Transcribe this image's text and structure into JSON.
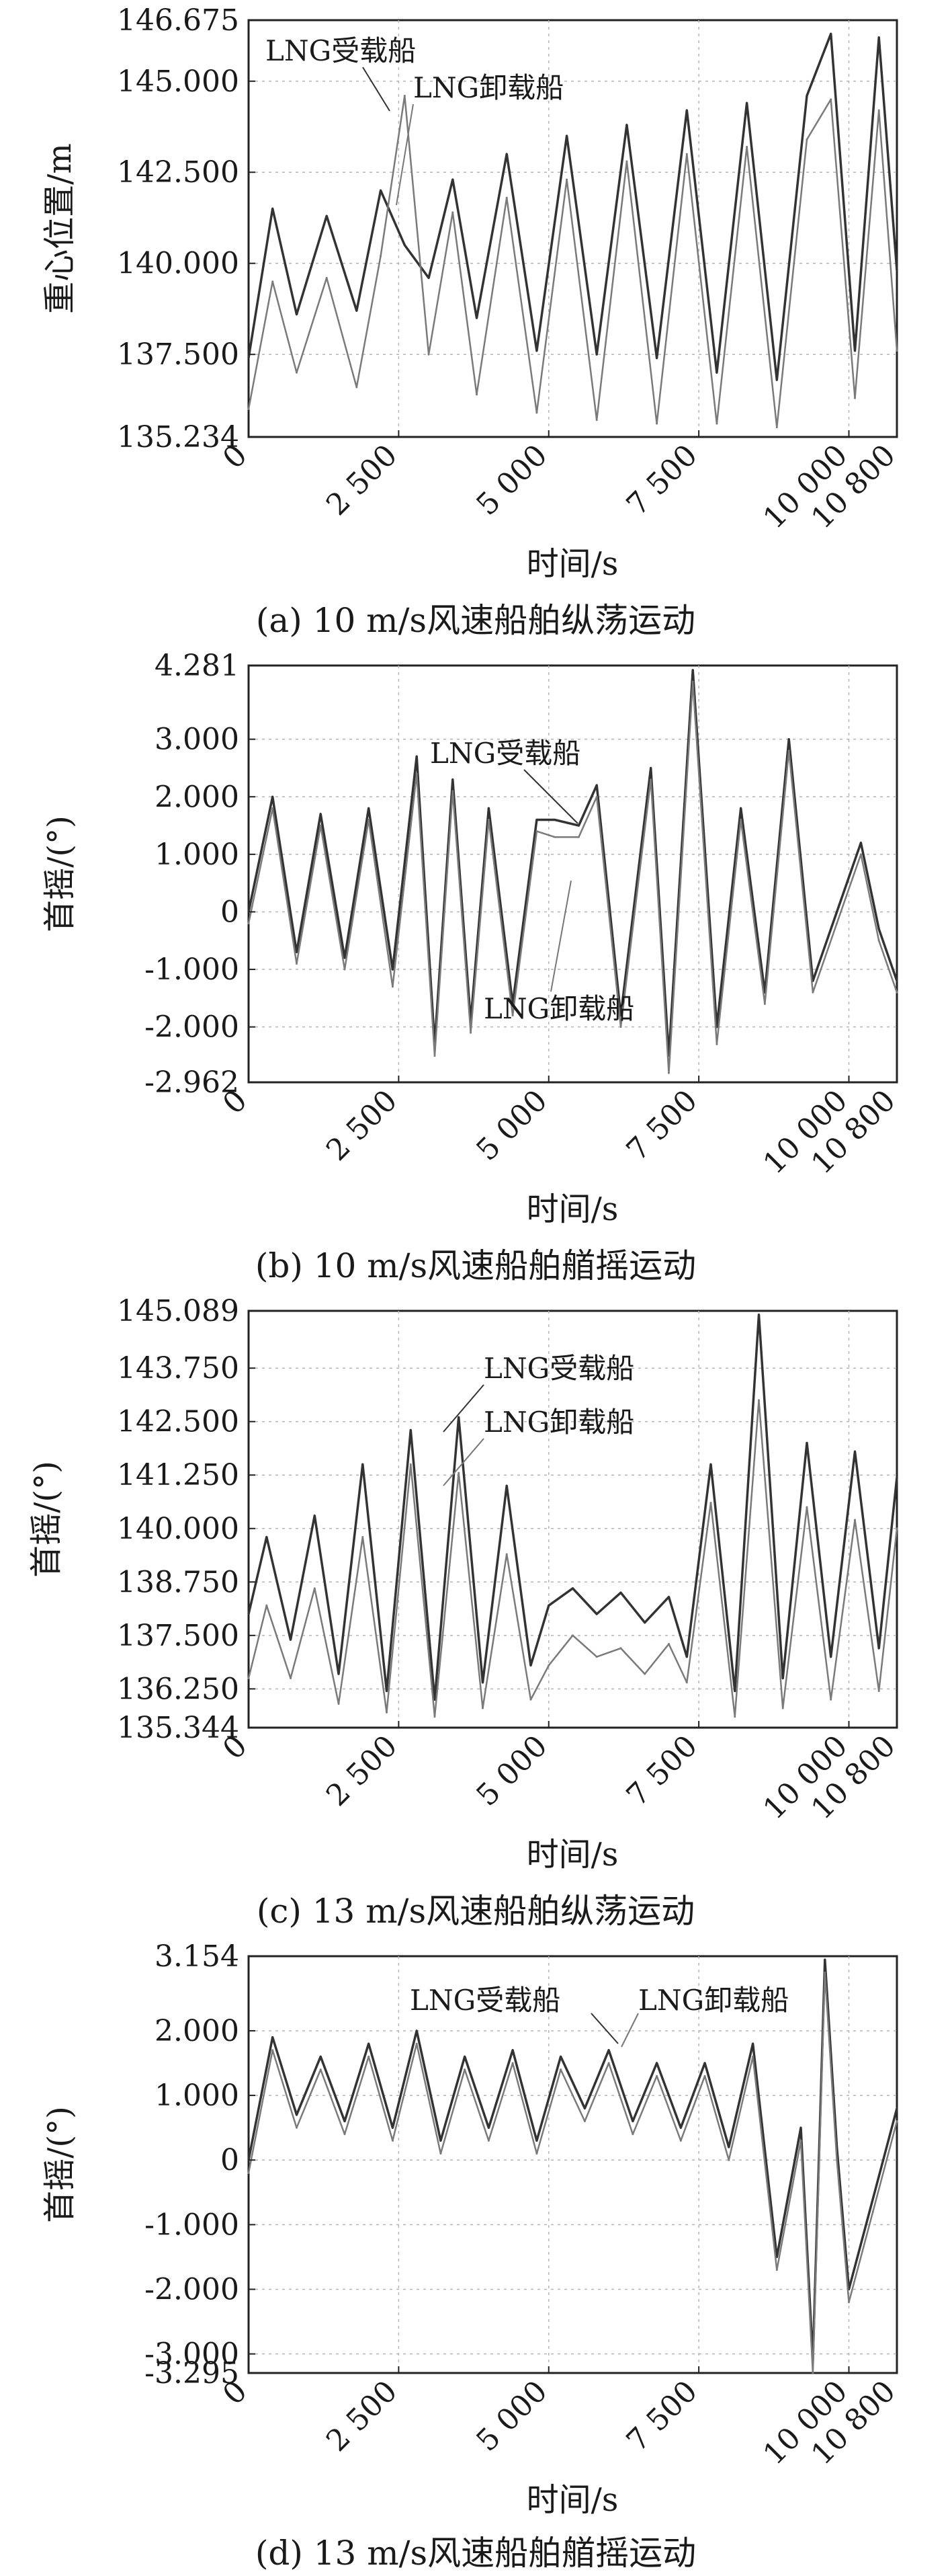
{
  "chart_data": [
    {
      "type": "line",
      "title": "",
      "caption": "(a) 10 m/s风速船舶纵荡运动",
      "xlabel": "时间/s",
      "ylabel": "重心位置/m",
      "xlim": [
        0,
        10800
      ],
      "ylim": [
        135.234,
        146.675
      ],
      "xticks": [
        0,
        2500,
        5000,
        7500,
        10000,
        10800
      ],
      "xtick_labels": [
        "0",
        "2 500",
        "5 000",
        "7 500",
        "10 000",
        "10 800"
      ],
      "yticks": [
        135.234,
        137.5,
        140.0,
        142.5,
        145.0,
        146.675
      ],
      "ytick_labels": [
        "135.234",
        "137.500",
        "140.000",
        "142.500",
        "145.000",
        "146.675"
      ],
      "grid": true,
      "series": [
        {
          "name": "LNG受载船",
          "color": "#333333",
          "x": [
            0,
            400,
            800,
            1300,
            1800,
            2200,
            2600,
            3000,
            3400,
            3800,
            4300,
            4800,
            5300,
            5800,
            6300,
            6800,
            7300,
            7800,
            8300,
            8800,
            9300,
            9700,
            10100,
            10500,
            10800
          ],
          "values": [
            137.4,
            141.5,
            138.6,
            141.3,
            138.7,
            142.0,
            140.5,
            139.6,
            142.3,
            138.5,
            143.0,
            137.6,
            143.5,
            137.5,
            143.8,
            137.4,
            144.2,
            137.0,
            144.4,
            136.8,
            144.6,
            146.3,
            137.6,
            146.2,
            139.8
          ]
        },
        {
          "name": "LNG卸载船",
          "color": "#7a7a7a",
          "x": [
            0,
            400,
            800,
            1300,
            1800,
            2200,
            2600,
            3000,
            3400,
            3800,
            4300,
            4800,
            5300,
            5800,
            6300,
            6800,
            7300,
            7800,
            8300,
            8800,
            9300,
            9700,
            10100,
            10500,
            10800
          ],
          "values": [
            136.0,
            139.5,
            137.0,
            139.6,
            136.6,
            140.2,
            144.6,
            137.5,
            141.4,
            136.4,
            141.8,
            135.9,
            142.3,
            135.7,
            142.8,
            135.6,
            143.0,
            135.6,
            143.2,
            135.5,
            143.4,
            144.5,
            136.3,
            144.2,
            137.6
          ]
        }
      ],
      "annotations": [
        "LNG受载船",
        "LNG卸载船"
      ]
    },
    {
      "type": "line",
      "title": "",
      "caption": "(b) 10 m/s风速船舶艏摇运动",
      "xlabel": "时间/s",
      "ylabel": "首摇/(°)",
      "xlim": [
        0,
        10800
      ],
      "ylim": [
        -2.962,
        4.281
      ],
      "xticks": [
        0,
        2500,
        5000,
        7500,
        10000,
        10800
      ],
      "xtick_labels": [
        "0",
        "2 500",
        "5 000",
        "7 500",
        "10 000",
        "10 800"
      ],
      "yticks": [
        -2.962,
        -2.0,
        -1.0,
        0,
        1.0,
        2.0,
        3.0,
        4.281
      ],
      "ytick_labels": [
        "-2.962",
        "-2.000",
        "-1.000",
        "0",
        "1.000",
        "2.000",
        "3.000",
        "4.281"
      ],
      "grid": true,
      "series": [
        {
          "name": "LNG受载船",
          "color": "#333333",
          "x": [
            0,
            400,
            800,
            1200,
            1600,
            2000,
            2400,
            2800,
            3100,
            3400,
            3700,
            4000,
            4400,
            4800,
            5100,
            5500,
            5800,
            6200,
            6700,
            7000,
            7400,
            7800,
            8200,
            8600,
            9000,
            9400,
            9800,
            10200,
            10500,
            10800
          ],
          "values": [
            0.0,
            2.0,
            -0.7,
            1.7,
            -0.8,
            1.8,
            -1.0,
            2.7,
            -2.3,
            2.3,
            -1.9,
            1.8,
            -1.6,
            1.6,
            1.6,
            1.5,
            2.2,
            -1.8,
            2.5,
            -2.5,
            4.2,
            -2.0,
            1.8,
            -1.4,
            3.0,
            -1.2,
            0.0,
            1.2,
            -0.3,
            -1.2
          ]
        },
        {
          "name": "LNG卸载船",
          "color": "#7a7a7a",
          "x": [
            0,
            400,
            800,
            1200,
            1600,
            2000,
            2400,
            2800,
            3100,
            3400,
            3700,
            4000,
            4400,
            4800,
            5100,
            5500,
            5800,
            6200,
            6700,
            7000,
            7400,
            7800,
            8200,
            8600,
            9000,
            9400,
            9800,
            10200,
            10500,
            10800
          ],
          "values": [
            -0.2,
            1.8,
            -0.9,
            1.5,
            -1.0,
            1.6,
            -1.3,
            2.4,
            -2.5,
            2.1,
            -2.1,
            1.6,
            -1.8,
            1.4,
            1.3,
            1.3,
            2.0,
            -2.0,
            2.3,
            -2.8,
            4.0,
            -2.3,
            1.6,
            -1.6,
            2.8,
            -1.4,
            -0.2,
            1.0,
            -0.5,
            -1.4
          ]
        }
      ],
      "annotations": [
        "LNG受载船",
        "LNG卸载船"
      ]
    },
    {
      "type": "line",
      "title": "",
      "caption": "(c) 13 m/s风速船舶纵荡运动",
      "xlabel": "时间/s",
      "ylabel": "首摇/(°)",
      "xlim": [
        0,
        10800
      ],
      "ylim": [
        135.344,
        145.089
      ],
      "xticks": [
        0,
        2500,
        5000,
        7500,
        10000,
        10800
      ],
      "xtick_labels": [
        "0",
        "2 500",
        "5 000",
        "7 500",
        "10 000",
        "10 800"
      ],
      "yticks": [
        135.344,
        136.25,
        137.5,
        138.75,
        140.0,
        141.25,
        142.5,
        143.75,
        145.089
      ],
      "ytick_labels": [
        "135.344",
        "136.250",
        "137.500",
        "138.750",
        "140.000",
        "141.250",
        "142.500",
        "143.750",
        "145.089"
      ],
      "grid": true,
      "series": [
        {
          "name": "LNG受载船",
          "color": "#333333",
          "x": [
            0,
            300,
            700,
            1100,
            1500,
            1900,
            2300,
            2700,
            3100,
            3500,
            3900,
            4300,
            4700,
            5000,
            5400,
            5800,
            6200,
            6600,
            7000,
            7300,
            7700,
            8100,
            8500,
            8900,
            9300,
            9700,
            10100,
            10500,
            10800
          ],
          "values": [
            138.0,
            139.8,
            137.4,
            140.3,
            136.6,
            141.5,
            136.2,
            142.3,
            136.0,
            142.6,
            136.4,
            141.0,
            136.8,
            138.2,
            138.6,
            138.0,
            138.5,
            137.8,
            138.4,
            137.0,
            141.5,
            136.2,
            145.0,
            136.5,
            142.0,
            137.0,
            141.8,
            137.2,
            141.2
          ]
        },
        {
          "name": "LNG卸载船",
          "color": "#7a7a7a",
          "x": [
            0,
            300,
            700,
            1100,
            1500,
            1900,
            2300,
            2700,
            3100,
            3500,
            3900,
            4300,
            4700,
            5000,
            5400,
            5800,
            6200,
            6600,
            7000,
            7300,
            7700,
            8100,
            8500,
            8900,
            9300,
            9700,
            10100,
            10500,
            10800
          ],
          "values": [
            136.5,
            138.2,
            136.5,
            138.6,
            135.9,
            139.8,
            135.7,
            141.5,
            135.6,
            141.3,
            135.8,
            139.4,
            136.0,
            136.8,
            137.5,
            137.0,
            137.2,
            136.6,
            137.3,
            136.4,
            140.6,
            135.6,
            143.0,
            135.8,
            140.5,
            136.0,
            140.2,
            136.2,
            140.0
          ]
        }
      ],
      "annotations": [
        "LNG受载船",
        "LNG卸载船"
      ]
    },
    {
      "type": "line",
      "title": "",
      "caption": "(d) 13 m/s风速船舶艏摇运动",
      "xlabel": "时间/s",
      "ylabel": "首摇/(°)",
      "xlim": [
        0,
        10800
      ],
      "ylim": [
        -3.295,
        3.154
      ],
      "xticks": [
        0,
        2500,
        5000,
        7500,
        10000,
        10800
      ],
      "xtick_labels": [
        "0",
        "2 500",
        "5 000",
        "7 500",
        "10 000",
        "10 800"
      ],
      "yticks": [
        -3.295,
        -3.0,
        -2.0,
        -1.0,
        0,
        1.0,
        2.0,
        3.154
      ],
      "ytick_labels": [
        "-3.295",
        "-3.000",
        "-2.000",
        "-1.000",
        "0",
        "1.000",
        "2.000",
        "3.154"
      ],
      "grid": true,
      "series": [
        {
          "name": "LNG受载船",
          "color": "#333333",
          "x": [
            0,
            400,
            800,
            1200,
            1600,
            2000,
            2400,
            2800,
            3200,
            3600,
            4000,
            4400,
            4800,
            5200,
            5600,
            6000,
            6400,
            6800,
            7200,
            7600,
            8000,
            8400,
            8800,
            9200,
            9400,
            9600,
            9800,
            10000,
            10400,
            10800
          ],
          "values": [
            0.0,
            1.9,
            0.7,
            1.6,
            0.6,
            1.8,
            0.5,
            2.0,
            0.3,
            1.6,
            0.5,
            1.7,
            0.3,
            1.6,
            0.8,
            1.7,
            0.6,
            1.5,
            0.5,
            1.5,
            0.2,
            1.8,
            -1.5,
            0.5,
            -3.1,
            3.1,
            0.2,
            -2.0,
            -0.6,
            0.8
          ]
        },
        {
          "name": "LNG卸载船",
          "color": "#7a7a7a",
          "x": [
            0,
            400,
            800,
            1200,
            1600,
            2000,
            2400,
            2800,
            3200,
            3600,
            4000,
            4400,
            4800,
            5200,
            5600,
            6000,
            6400,
            6800,
            7200,
            7600,
            8000,
            8400,
            8800,
            9200,
            9400,
            9600,
            9800,
            10000,
            10400,
            10800
          ],
          "values": [
            -0.2,
            1.7,
            0.5,
            1.4,
            0.4,
            1.6,
            0.3,
            1.8,
            0.1,
            1.4,
            0.3,
            1.5,
            0.1,
            1.4,
            0.6,
            1.5,
            0.4,
            1.3,
            0.3,
            1.3,
            0.0,
            1.6,
            -1.7,
            0.3,
            -3.3,
            2.9,
            0.0,
            -2.2,
            -0.8,
            0.6
          ]
        }
      ],
      "annotations": [
        "LNG受载船",
        "LNG卸载船"
      ]
    }
  ]
}
